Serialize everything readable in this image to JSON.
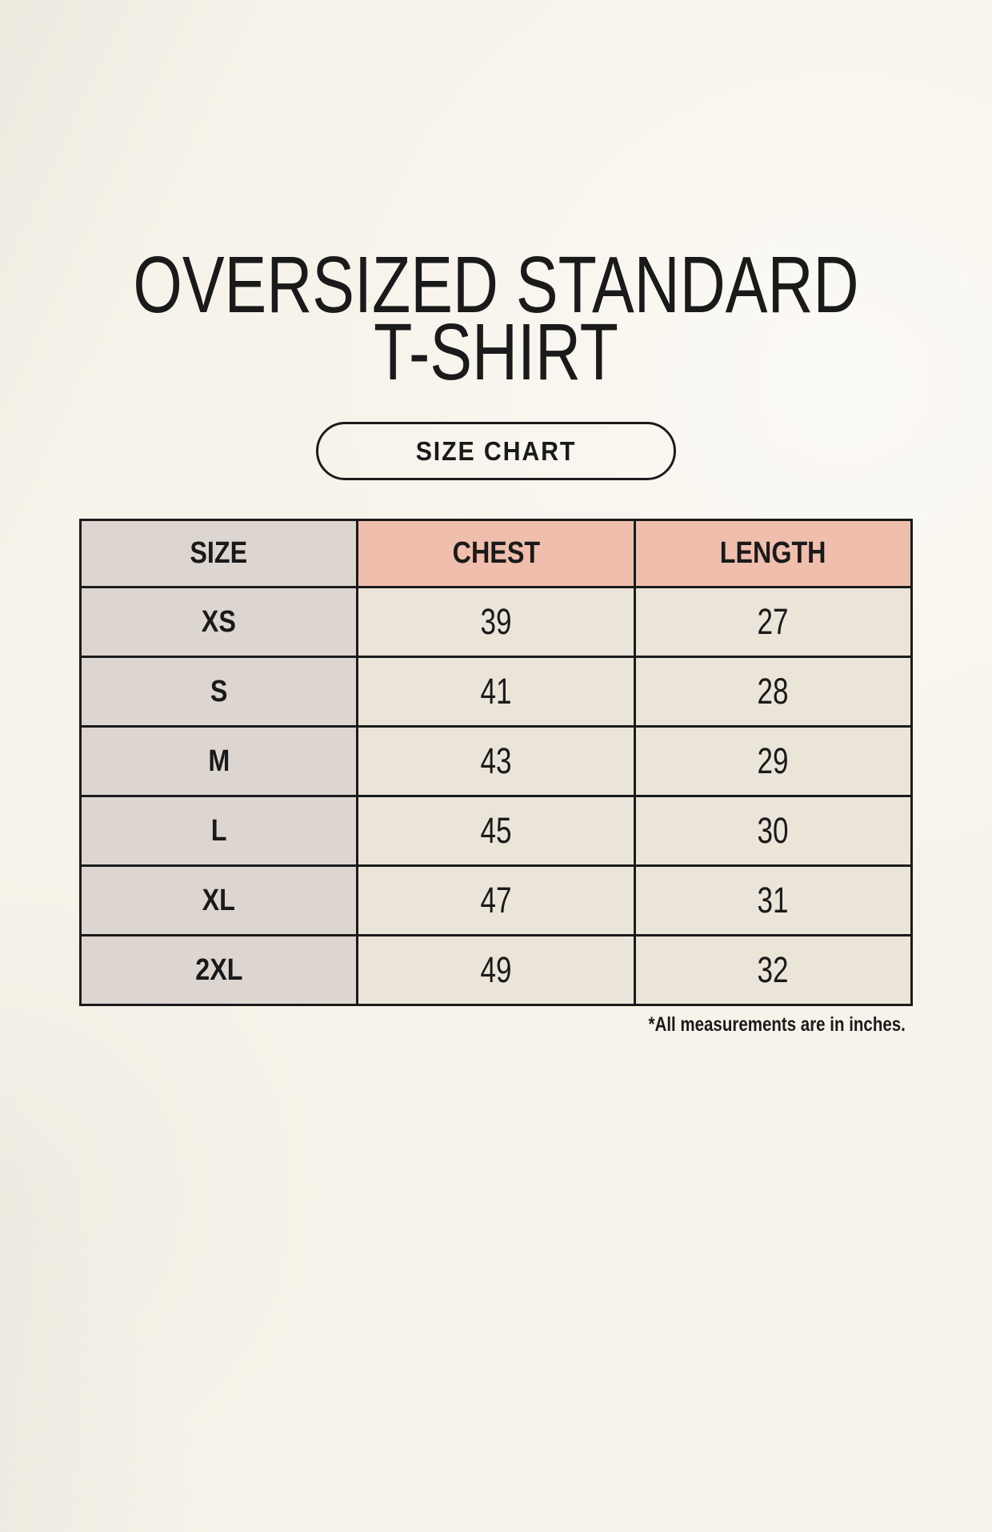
{
  "colors": {
    "page_bg": "#f7f3ea",
    "text": "#1a1a1a",
    "table_border": "#1b1b1b",
    "size_col_bg": "#ddd6d0",
    "header_accent_bg": "#efbeac",
    "cell_bg": "#ebe4d8"
  },
  "header": {
    "title_lines": [
      "OVERSIZED STANDARD",
      "T-SHIRT"
    ],
    "size_chart_button_label": "SIZE CHART"
  },
  "size_chart": {
    "columns": [
      "SIZE",
      "CHEST",
      "LENGTH"
    ],
    "rows": [
      {
        "size": "XS",
        "chest": "39",
        "length": "27"
      },
      {
        "size": "S",
        "chest": "41",
        "length": "28"
      },
      {
        "size": "M",
        "chest": "43",
        "length": "29"
      },
      {
        "size": "L",
        "chest": "45",
        "length": "30"
      },
      {
        "size": "XL",
        "chest": "47",
        "length": "31"
      },
      {
        "size": "2XL",
        "chest": "49",
        "length": "32"
      }
    ],
    "footnote": "*All measurements are in inches."
  },
  "chart_data": {
    "type": "table",
    "title": "OVERSIZED STANDARD T-SHIRT — SIZE CHART",
    "columns": [
      "SIZE",
      "CHEST",
      "LENGTH"
    ],
    "rows": [
      [
        "XS",
        39,
        27
      ],
      [
        "S",
        41,
        28
      ],
      [
        "M",
        43,
        29
      ],
      [
        "L",
        45,
        30
      ],
      [
        "XL",
        47,
        31
      ],
      [
        "2XL",
        49,
        32
      ]
    ],
    "units": "inches",
    "note": "*All measurements are in inches."
  }
}
